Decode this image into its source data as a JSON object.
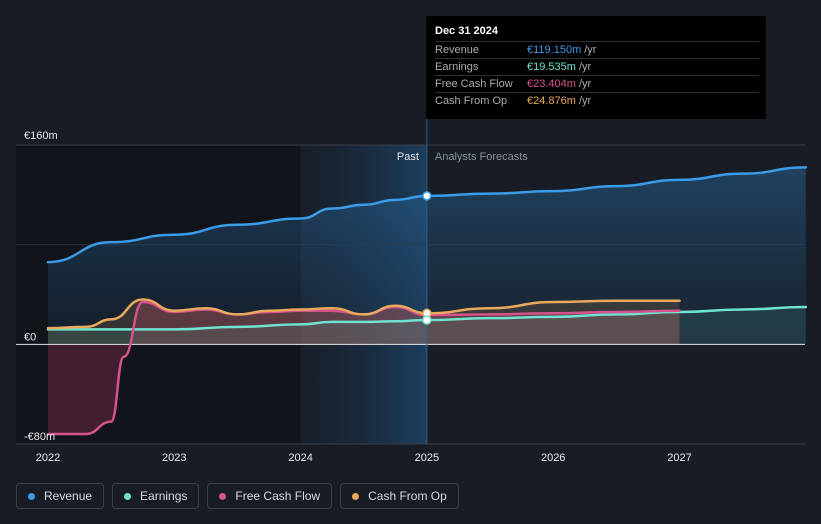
{
  "tooltip": {
    "date": "Dec 31 2024",
    "rows": [
      {
        "label": "Revenue",
        "value": "€119.150m",
        "unit": "/yr",
        "color": "#3a9be8"
      },
      {
        "label": "Earnings",
        "value": "€19.535m",
        "unit": "/yr",
        "color": "#6fe3cf"
      },
      {
        "label": "Free Cash Flow",
        "value": "€23.404m",
        "unit": "/yr",
        "color": "#d6528c"
      },
      {
        "label": "Cash From Op",
        "value": "€24.876m",
        "unit": "/yr",
        "color": "#e8a95c"
      }
    ]
  },
  "legend": [
    {
      "label": "Revenue",
      "color": "#3a9be8"
    },
    {
      "label": "Earnings",
      "color": "#6fe3cf"
    },
    {
      "label": "Free Cash Flow",
      "color": "#d6528c"
    },
    {
      "label": "Cash From Op",
      "color": "#e8a95c"
    }
  ],
  "chart_data": {
    "type": "line",
    "ylim": [
      -80,
      160
    ],
    "y_tick_labels": [
      {
        "value": 160,
        "label": "€160m"
      },
      {
        "value": 0,
        "label": "€0"
      },
      {
        "value": -80,
        "label": "-€80m"
      }
    ],
    "x_ticks": [
      2022,
      2023,
      2024,
      2025,
      2026,
      2027
    ],
    "xlim": [
      2021.8,
      2028.0
    ],
    "divider_x": 2025.0,
    "past_label": "Past",
    "forecast_label": "Analysts Forecasts",
    "series": [
      {
        "name": "Revenue",
        "color": "#3a9be8",
        "x": [
          2022.0,
          2022.5,
          2023.0,
          2023.5,
          2024.0,
          2024.25,
          2024.5,
          2024.75,
          2025.0,
          2025.5,
          2026.0,
          2026.5,
          2027.0,
          2027.5,
          2028.0
        ],
        "y": [
          66,
          82,
          88,
          96,
          101,
          109,
          112,
          116,
          119.2,
          121,
          123,
          127,
          132,
          137,
          142
        ]
      },
      {
        "name": "Earnings",
        "color": "#6fe3cf",
        "x": [
          2022.0,
          2022.5,
          2023.0,
          2023.5,
          2024.0,
          2024.25,
          2024.5,
          2024.75,
          2025.0,
          2025.5,
          2026.0,
          2026.5,
          2027.0,
          2027.5,
          2028.0
        ],
        "y": [
          12,
          12,
          12,
          14,
          16,
          18,
          18,
          18.5,
          19.5,
          21,
          22,
          24,
          26,
          28,
          30
        ]
      },
      {
        "name": "Free Cash Flow",
        "color": "#d6528c",
        "x": [
          2022.0,
          2022.3,
          2022.5,
          2022.6,
          2022.75,
          2023.0,
          2023.25,
          2023.5,
          2023.75,
          2024.0,
          2024.25,
          2024.5,
          2024.75,
          2025.0,
          2025.5,
          2026.0,
          2026.5,
          2027.0
        ],
        "y": [
          -72,
          -72,
          -62,
          -10,
          34,
          26,
          28,
          24,
          26,
          27,
          27,
          24,
          30,
          23.4,
          24,
          25,
          26,
          27
        ]
      },
      {
        "name": "Cash From Op",
        "color": "#e8a95c",
        "x": [
          2022.0,
          2022.3,
          2022.5,
          2022.75,
          2023.0,
          2023.25,
          2023.5,
          2023.75,
          2024.0,
          2024.25,
          2024.5,
          2024.75,
          2025.0,
          2025.5,
          2026.0,
          2026.5,
          2027.0
        ],
        "y": [
          13,
          14,
          20,
          36,
          27,
          29,
          24,
          27,
          28,
          29,
          24,
          31,
          24.9,
          29,
          34,
          35,
          35
        ]
      }
    ]
  }
}
